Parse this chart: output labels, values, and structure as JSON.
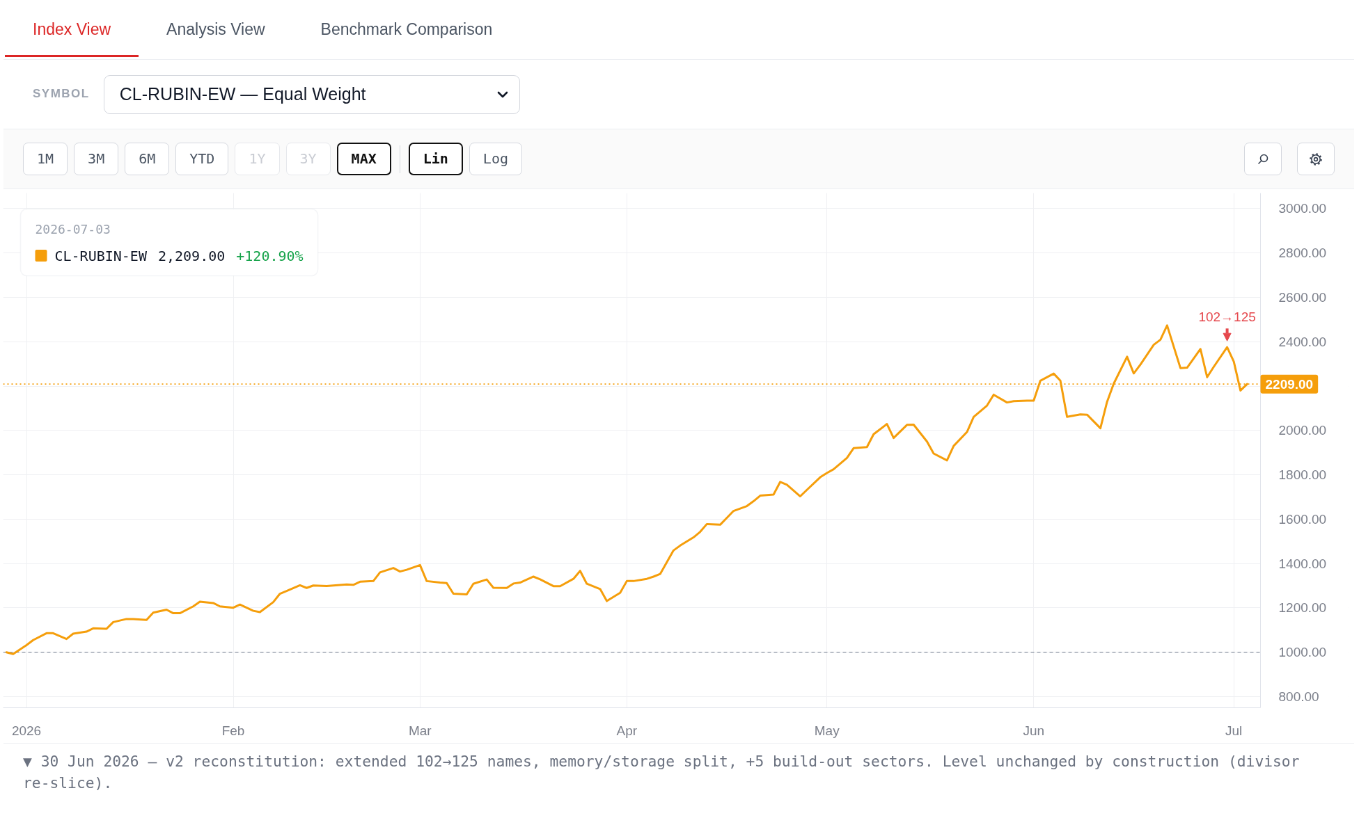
{
  "chart_data": {
    "type": "line",
    "x": [
      "2025-12-29",
      "2025-12-30",
      "2026-01-01",
      "2026-01-02",
      "2026-01-04",
      "2026-01-05",
      "2026-01-07",
      "2026-01-08",
      "2026-01-10",
      "2026-01-11",
      "2026-01-13",
      "2026-01-14",
      "2026-01-16",
      "2026-01-17",
      "2026-01-19",
      "2026-01-20",
      "2026-01-22",
      "2026-01-23",
      "2026-01-24",
      "2026-01-26",
      "2026-01-27",
      "2026-01-29",
      "2026-01-30",
      "2026-02-01",
      "2026-02-02",
      "2026-02-04",
      "2026-02-05",
      "2026-02-07",
      "2026-02-08",
      "2026-02-09",
      "2026-02-11",
      "2026-02-12",
      "2026-02-13",
      "2026-02-15",
      "2026-02-16",
      "2026-02-18",
      "2026-02-19",
      "2026-02-20",
      "2026-02-22",
      "2026-02-23",
      "2026-02-25",
      "2026-02-26",
      "2026-02-27",
      "2026-03-01",
      "2026-03-02",
      "2026-03-04",
      "2026-03-05",
      "2026-03-06",
      "2026-03-08",
      "2026-03-09",
      "2026-03-11",
      "2026-03-12",
      "2026-03-14",
      "2026-03-15",
      "2026-03-16",
      "2026-03-18",
      "2026-03-19",
      "2026-03-21",
      "2026-03-22",
      "2026-03-24",
      "2026-03-25",
      "2026-03-26",
      "2026-03-28",
      "2026-03-29",
      "2026-03-31",
      "2026-04-01",
      "2026-04-02",
      "2026-04-04",
      "2026-04-05",
      "2026-04-06",
      "2026-04-08",
      "2026-04-09",
      "2026-04-11",
      "2026-04-12",
      "2026-04-13",
      "2026-04-15",
      "2026-04-16",
      "2026-04-17",
      "2026-04-19",
      "2026-04-20",
      "2026-04-21",
      "2026-04-23",
      "2026-04-24",
      "2026-04-25",
      "2026-04-27",
      "2026-04-28",
      "2026-04-30",
      "2026-05-01",
      "2026-05-02",
      "2026-05-04",
      "2026-05-05",
      "2026-05-07",
      "2026-05-08",
      "2026-05-10",
      "2026-05-11",
      "2026-05-13",
      "2026-05-14",
      "2026-05-16",
      "2026-05-17",
      "2026-05-19",
      "2026-05-20",
      "2026-05-22",
      "2026-05-23",
      "2026-05-25",
      "2026-05-26",
      "2026-05-28",
      "2026-05-29",
      "2026-05-31",
      "2026-06-01",
      "2026-06-02",
      "2026-06-04",
      "2026-06-05",
      "2026-06-06",
      "2026-06-08",
      "2026-06-09",
      "2026-06-11",
      "2026-06-12",
      "2026-06-13",
      "2026-06-15",
      "2026-06-16",
      "2026-06-17",
      "2026-06-19",
      "2026-06-20",
      "2026-06-21",
      "2026-06-23",
      "2026-06-24",
      "2026-06-26",
      "2026-06-27",
      "2026-06-28",
      "2026-06-30",
      "2026-07-01",
      "2026-07-02",
      "2026-07-03"
    ],
    "series": [
      {
        "name": "CL-RUBIN-EW",
        "color": "#f59e0b",
        "values": [
          1000,
          992,
          1032,
          1055,
          1086,
          1086,
          1060,
          1084,
          1093,
          1108,
          1106,
          1136,
          1150,
          1150,
          1146,
          1179,
          1192,
          1176,
          1176,
          1207,
          1228,
          1222,
          1207,
          1201,
          1215,
          1187,
          1181,
          1226,
          1264,
          1276,
          1302,
          1290,
          1301,
          1299,
          1301,
          1306,
          1304,
          1318,
          1321,
          1360,
          1380,
          1364,
          1372,
          1393,
          1321,
          1314,
          1312,
          1264,
          1261,
          1309,
          1328,
          1291,
          1290,
          1310,
          1314,
          1341,
          1329,
          1298,
          1298,
          1331,
          1367,
          1309,
          1285,
          1231,
          1268,
          1321,
          1321,
          1331,
          1341,
          1353,
          1459,
          1481,
          1518,
          1543,
          1578,
          1575,
          1606,
          1637,
          1659,
          1681,
          1706,
          1711,
          1768,
          1755,
          1703,
          1732,
          1789,
          1808,
          1825,
          1876,
          1920,
          1925,
          1983,
          2029,
          1966,
          2025,
          2026,
          1950,
          1896,
          1865,
          1930,
          1993,
          2061,
          2112,
          2161,
          2126,
          2132,
          2134,
          2134,
          2224,
          2256,
          2224,
          2061,
          2072,
          2071,
          2010,
          2129,
          2211,
          2332,
          2257,
          2297,
          2386,
          2409,
          2473,
          2281,
          2283,
          2367,
          2240,
          2287,
          2375,
          2310,
          2180,
          2209
        ]
      }
    ],
    "xlim": [
      "2025-12-28T12:00",
      "2026-07-05"
    ],
    "xticks": [
      {
        "value": "2026-01-01",
        "label": "2026"
      },
      {
        "value": "2026-02-01",
        "label": "Feb"
      },
      {
        "value": "2026-03-01",
        "label": "Mar"
      },
      {
        "value": "2026-04-01",
        "label": "Apr"
      },
      {
        "value": "2026-05-01",
        "label": "May"
      },
      {
        "value": "2026-06-01",
        "label": "Jun"
      },
      {
        "value": "2026-07-01",
        "label": "Jul"
      }
    ],
    "ylim": [
      750,
      3070
    ],
    "yticks": [
      {
        "value": 800,
        "label": "800.00"
      },
      {
        "value": 1000,
        "label": "1000.00"
      },
      {
        "value": 1200,
        "label": "1200.00"
      },
      {
        "value": 1400,
        "label": "1400.00"
      },
      {
        "value": 1600,
        "label": "1600.00"
      },
      {
        "value": 1800,
        "label": "1800.00"
      },
      {
        "value": 2000,
        "label": "2000.00"
      },
      {
        "value": 2200,
        "label": null
      },
      {
        "value": 2400,
        "label": "2400.00"
      },
      {
        "value": 2600,
        "label": "2600.00"
      },
      {
        "value": 2800,
        "label": "2800.00"
      },
      {
        "value": 3000,
        "label": "3000.00"
      }
    ],
    "grid": true,
    "legend": "top left",
    "legend_title": "2026-07-03",
    "ref_lines": [
      {
        "axis": "y",
        "value": 2209,
        "label": "2209.00",
        "color": "#f59e0b",
        "line_style": "dotted"
      },
      {
        "axis": "y",
        "value": 1000,
        "color": "#9ca3af",
        "line_style": "dashed"
      }
    ],
    "annotations": [
      {
        "text": "102→125",
        "x": "2026-06-30",
        "y": 2375
      },
      "Index View",
      "Analysis View",
      "Benchmark Comparison",
      "SYMBOL",
      "CL-RUBIN-EW — Equal Weight",
      "1M",
      "3M",
      "6M",
      "YTD",
      "1Y",
      "3Y",
      "MAX",
      "Lin",
      "Log",
      "2,209.00",
      "+120.90%",
      "▼ 30 Jun 2026 — v2 reconstitution: extended 102→125 names, memory/storage split, +5 build-out sectors. Level unchanged by construction (divisor re-slice)."
    ]
  }
}
